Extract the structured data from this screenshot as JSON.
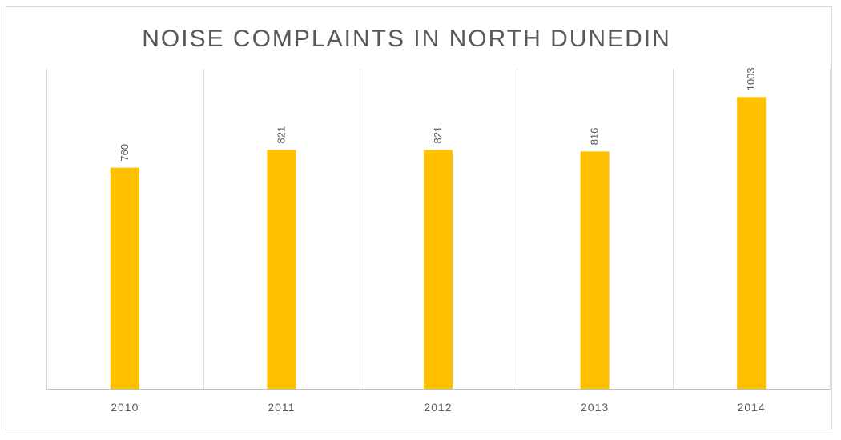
{
  "chart_data": {
    "type": "bar",
    "title": "NOISE COMPLAINTS IN NORTH DUNEDIN",
    "categories": [
      "2010",
      "2011",
      "2012",
      "2013",
      "2014"
    ],
    "values": [
      760,
      821,
      821,
      816,
      1003
    ],
    "data_labels": [
      "760",
      "821",
      "821",
      "816",
      "1003"
    ],
    "ylim": [
      0,
      1100
    ],
    "grid": "vertical category separators",
    "legend": "none",
    "colors": {
      "bar": "#FFC000",
      "gridline": "#d9d9d9",
      "text": "#595959"
    }
  }
}
